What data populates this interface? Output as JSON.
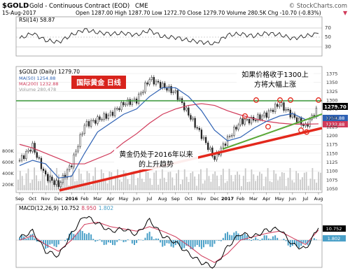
{
  "header": {
    "symbol": "$GOLD",
    "name": "Gold - Continuous Contract (EOD)",
    "exchange": "CME",
    "watermark": "© StockCharts.com",
    "date": "15-Aug-2017",
    "ohlc_text": "Open 1287.00  High 1287.70  Low 1272.70  Close 1279.70  Volume 280.5K  Chg -10.70 (-0.83%)",
    "change_marker": "▼"
  },
  "rsi": {
    "label": "RSI(14) 58.87",
    "levels": [
      "70",
      "50",
      "30"
    ],
    "current": "58.87"
  },
  "price_panel": {
    "legend": [
      {
        "text": "$GOLD (Daily) 1279.70",
        "color": "#000000"
      },
      {
        "text": "MA(50) 1254.88",
        "color": "#2f62b4"
      },
      {
        "text": "MA(200) 1232.88",
        "color": "#d03a5a"
      },
      {
        "text": "Volume 280,478",
        "color": "#999999"
      }
    ],
    "title_box": "国际黄金  日线",
    "annotation_top": [
      "如果价格收于1300上",
      "方将大幅上涨"
    ],
    "annotation_bottom": [
      "黄金仍处于2016年以来",
      "的上升趋势"
    ],
    "price_tag": "1279.70",
    "ma50_tag": "1254.88",
    "ma200_tag": "1232.88",
    "y_ticks": [
      "1375",
      "1350",
      "1325",
      "1300",
      "1275",
      "1250",
      "1225",
      "1200",
      "1175",
      "1150",
      "1125",
      "1100",
      "1075",
      "1050"
    ],
    "volume_ticks": [
      "800K",
      "600K",
      "400K",
      "200K"
    ],
    "circle_marks": [
      "1",
      "2",
      "3",
      "4",
      "5",
      "6",
      "7",
      "8"
    ]
  },
  "macd": {
    "label_prefix": "MACD(12,26,9)",
    "v1": "10.752",
    "v2": "8.950",
    "v3": "1.802",
    "tags": [
      "10.752",
      "1.802"
    ]
  },
  "x_axis": {
    "labels": [
      "Sep",
      "Oct",
      "Nov",
      "Dec",
      "2016",
      "Feb",
      "Mar",
      "Apr",
      "May",
      "Jun",
      "Jul",
      "Aug",
      "Sep",
      "Oct",
      "Nov",
      "Dec",
      "2017",
      "Feb",
      "Mar",
      "Apr",
      "May",
      "Jun",
      "Jul",
      "Aug"
    ]
  },
  "colors": {
    "up": "#1a1a1a",
    "ma50": "#2f62b4",
    "ma200": "#d03a5a",
    "resistance": "#3a9a3a",
    "trend_red": "#e3281c",
    "trend_green": "#5aa838",
    "title_box": "#d8231c",
    "macd_hist": "#4aa0c8"
  },
  "chart_data": {
    "type": "line",
    "title": "$GOLD Gold - Continuous Contract (EOD) CME",
    "x": [
      "Sep 2015",
      "Oct",
      "Nov",
      "Dec",
      "Jan 2016",
      "Feb",
      "Mar",
      "Apr",
      "May",
      "Jun",
      "Jul",
      "Aug",
      "Sep",
      "Oct",
      "Nov",
      "Dec",
      "Jan 2017",
      "Feb",
      "Mar",
      "Apr",
      "May",
      "Jun",
      "Jul",
      "Aug 2017"
    ],
    "series": [
      {
        "name": "$GOLD (Daily)",
        "values": [
          1130,
          1170,
          1085,
          1060,
          1120,
          1230,
          1245,
          1260,
          1290,
          1300,
          1360,
          1340,
          1320,
          1260,
          1200,
          1135,
          1190,
          1240,
          1245,
          1260,
          1290,
          1255,
          1225,
          1279.7
        ]
      },
      {
        "name": "MA(50)",
        "values": [
          1115,
          1130,
          1120,
          1080,
          1085,
          1150,
          1210,
          1235,
          1260,
          1275,
          1310,
          1335,
          1335,
          1310,
          1270,
          1215,
          1185,
          1195,
          1220,
          1240,
          1255,
          1262,
          1245,
          1254.88
        ]
      },
      {
        "name": "MA(200)",
        "values": [
          1175,
          1165,
          1150,
          1135,
          1120,
          1120,
          1135,
          1150,
          1180,
          1205,
          1235,
          1260,
          1275,
          1285,
          1290,
          1285,
          1270,
          1258,
          1248,
          1240,
          1235,
          1232,
          1232,
          1232.88
        ]
      }
    ],
    "ylim": [
      1045,
      1385
    ],
    "resistance_level": 1300,
    "ohlc": {
      "open": 1287.0,
      "high": 1287.7,
      "low": 1272.7,
      "close": 1279.7,
      "volume": "280.5K",
      "change": -10.7,
      "change_pct": -0.83
    },
    "rsi": {
      "value": 58.87,
      "levels": [
        70,
        50,
        30
      ],
      "values": [
        45,
        60,
        40,
        35,
        55,
        70,
        62,
        58,
        60,
        55,
        68,
        50,
        48,
        40,
        35,
        30,
        55,
        58,
        52,
        60,
        56,
        45,
        52,
        58.87
      ]
    },
    "macd": {
      "macd": 10.752,
      "signal": 8.95,
      "histogram": 1.802,
      "values": [
        2,
        8,
        -10,
        -14,
        6,
        22,
        15,
        8,
        10,
        5,
        18,
        4,
        -2,
        -12,
        -20,
        -24,
        -6,
        6,
        3,
        9,
        10,
        -4,
        -8,
        10.752
      ],
      "signal_values": [
        0,
        4,
        -4,
        -10,
        0,
        14,
        16,
        12,
        10,
        8,
        12,
        8,
        3,
        -5,
        -14,
        -20,
        -12,
        0,
        3,
        6,
        8,
        2,
        -4,
        8.95
      ]
    },
    "grid": true
  }
}
